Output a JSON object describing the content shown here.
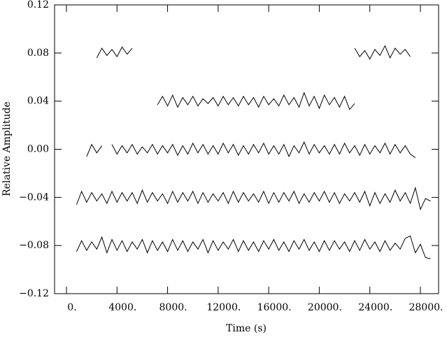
{
  "chart_data": {
    "type": "line",
    "xlabel": "Time (s)",
    "ylabel": "Relative Amplitude",
    "x": [
      400,
      800,
      1200,
      1600,
      2000,
      2400,
      2800,
      3200,
      3600,
      4000,
      4400,
      4800,
      5200,
      5600,
      6000,
      6400,
      6800,
      7200,
      7600,
      8000,
      8400,
      8800,
      9200,
      9600,
      10000,
      10400,
      10800,
      11200,
      11600,
      12000,
      12400,
      12800,
      13200,
      13600,
      14000,
      14400,
      14800,
      15200,
      15600,
      16000,
      16400,
      16800,
      17200,
      17600,
      18000,
      18400,
      18800,
      19200,
      19600,
      20000,
      20400,
      20800,
      21200,
      21600,
      22000,
      22400,
      22800,
      23200,
      23600,
      24000,
      24400,
      24800,
      25200,
      25600,
      26000,
      26400,
      26800,
      27200,
      27600,
      28000,
      28400,
      28800
    ],
    "series": [
      {
        "color": "#000000",
        "values": [
          null,
          null,
          null,
          null,
          null,
          0.076,
          0.084,
          0.078,
          0.083,
          0.077,
          0.085,
          0.079,
          0.084,
          null,
          null,
          null,
          null,
          null,
          null,
          null,
          null,
          null,
          null,
          null,
          null,
          null,
          null,
          null,
          null,
          null,
          null,
          null,
          null,
          null,
          null,
          null,
          null,
          null,
          null,
          null,
          null,
          null,
          null,
          null,
          null,
          null,
          null,
          null,
          null,
          null,
          null,
          null,
          null,
          null,
          null,
          null,
          0.084,
          0.077,
          0.082,
          0.075,
          0.083,
          0.078,
          0.086,
          0.076,
          0.084,
          0.079,
          0.083,
          0.077,
          null,
          null,
          null,
          null
        ]
      },
      {
        "color": "#000000",
        "values": [
          null,
          null,
          null,
          null,
          null,
          null,
          null,
          null,
          null,
          null,
          null,
          null,
          null,
          null,
          null,
          null,
          null,
          0.037,
          0.044,
          0.036,
          0.045,
          0.035,
          0.043,
          0.037,
          0.044,
          0.036,
          0.042,
          0.038,
          0.043,
          0.036,
          0.044,
          0.037,
          0.043,
          0.036,
          0.044,
          0.037,
          0.043,
          0.035,
          0.044,
          0.037,
          0.042,
          0.036,
          0.045,
          0.037,
          0.043,
          0.035,
          0.047,
          0.036,
          0.044,
          0.034,
          0.045,
          0.037,
          0.043,
          0.035,
          0.044,
          0.033,
          0.038,
          null,
          null,
          null,
          null,
          null,
          null,
          null,
          null,
          null,
          null,
          null,
          null,
          null,
          null,
          null
        ]
      },
      {
        "color": "#000000",
        "values": [
          null,
          null,
          null,
          -0.006,
          0.004,
          -0.003,
          0.003,
          null,
          0.004,
          -0.004,
          0.003,
          -0.003,
          0.004,
          -0.004,
          0.002,
          -0.003,
          0.004,
          -0.004,
          0.003,
          -0.003,
          0.004,
          -0.005,
          0.003,
          -0.004,
          0.005,
          -0.003,
          0.004,
          -0.004,
          0.003,
          -0.004,
          0.005,
          -0.003,
          0.004,
          -0.005,
          0.003,
          -0.004,
          0.004,
          -0.003,
          0.005,
          -0.004,
          0.003,
          -0.004,
          0.004,
          -0.006,
          0.003,
          -0.003,
          0.006,
          -0.004,
          0.004,
          -0.003,
          0.003,
          -0.004,
          0.004,
          -0.004,
          0.005,
          -0.003,
          0.003,
          -0.005,
          0.004,
          -0.004,
          0.003,
          -0.003,
          0.005,
          -0.004,
          0.004,
          -0.003,
          0.003,
          -0.004,
          -0.007,
          null,
          null,
          null
        ]
      },
      {
        "color": "#000000",
        "values": [
          null,
          -0.046,
          -0.035,
          -0.044,
          -0.036,
          -0.043,
          -0.037,
          -0.045,
          -0.035,
          -0.044,
          -0.036,
          -0.043,
          -0.036,
          -0.045,
          -0.034,
          -0.044,
          -0.036,
          -0.043,
          -0.037,
          -0.045,
          -0.035,
          -0.044,
          -0.036,
          -0.043,
          -0.035,
          -0.045,
          -0.036,
          -0.044,
          -0.037,
          -0.043,
          -0.036,
          -0.045,
          -0.035,
          -0.044,
          -0.036,
          -0.043,
          -0.037,
          -0.044,
          -0.035,
          -0.045,
          -0.036,
          -0.044,
          -0.036,
          -0.043,
          -0.035,
          -0.045,
          -0.037,
          -0.044,
          -0.036,
          -0.043,
          -0.035,
          -0.044,
          -0.036,
          -0.045,
          -0.037,
          -0.043,
          -0.036,
          -0.044,
          -0.035,
          -0.047,
          -0.036,
          -0.045,
          -0.037,
          -0.044,
          -0.034,
          -0.043,
          -0.036,
          -0.045,
          -0.032,
          -0.05,
          -0.041,
          -0.043
        ]
      },
      {
        "color": "#000000",
        "values": [
          null,
          -0.085,
          -0.076,
          -0.084,
          -0.077,
          -0.083,
          -0.073,
          -0.086,
          -0.075,
          -0.084,
          -0.076,
          -0.085,
          -0.077,
          -0.083,
          -0.075,
          -0.086,
          -0.076,
          -0.084,
          -0.077,
          -0.085,
          -0.075,
          -0.084,
          -0.076,
          -0.085,
          -0.077,
          -0.083,
          -0.075,
          -0.086,
          -0.076,
          -0.084,
          -0.077,
          -0.083,
          -0.075,
          -0.085,
          -0.076,
          -0.084,
          -0.077,
          -0.085,
          -0.076,
          -0.083,
          -0.075,
          -0.084,
          -0.077,
          -0.085,
          -0.076,
          -0.083,
          -0.075,
          -0.084,
          -0.077,
          -0.085,
          -0.076,
          -0.084,
          -0.076,
          -0.083,
          -0.077,
          -0.085,
          -0.076,
          -0.084,
          -0.075,
          -0.083,
          -0.077,
          -0.085,
          -0.076,
          -0.084,
          -0.078,
          -0.083,
          -0.074,
          -0.072,
          -0.086,
          -0.079,
          -0.09,
          -0.091
        ]
      }
    ],
    "xlim": [
      -940,
      29440
    ],
    "xticks": [
      {
        "value": 0,
        "label": "0."
      },
      {
        "value": 4000,
        "label": "4000."
      },
      {
        "value": 8000,
        "label": "8000."
      },
      {
        "value": 12000,
        "label": "12000."
      },
      {
        "value": 16000,
        "label": "16000."
      },
      {
        "value": 20000,
        "label": "20000."
      },
      {
        "value": 24000,
        "label": "24000."
      },
      {
        "value": 28000,
        "label": "28000."
      }
    ],
    "ylim": [
      -0.12,
      0.12
    ],
    "yticks": [
      {
        "value": -0.12,
        "label": "−0.12"
      },
      {
        "value": -0.08,
        "label": "−0.08"
      },
      {
        "value": -0.04,
        "label": "−0.04"
      },
      {
        "value": 0,
        "label": "0.00"
      },
      0.04,
      0.08,
      0.12
    ]
  }
}
